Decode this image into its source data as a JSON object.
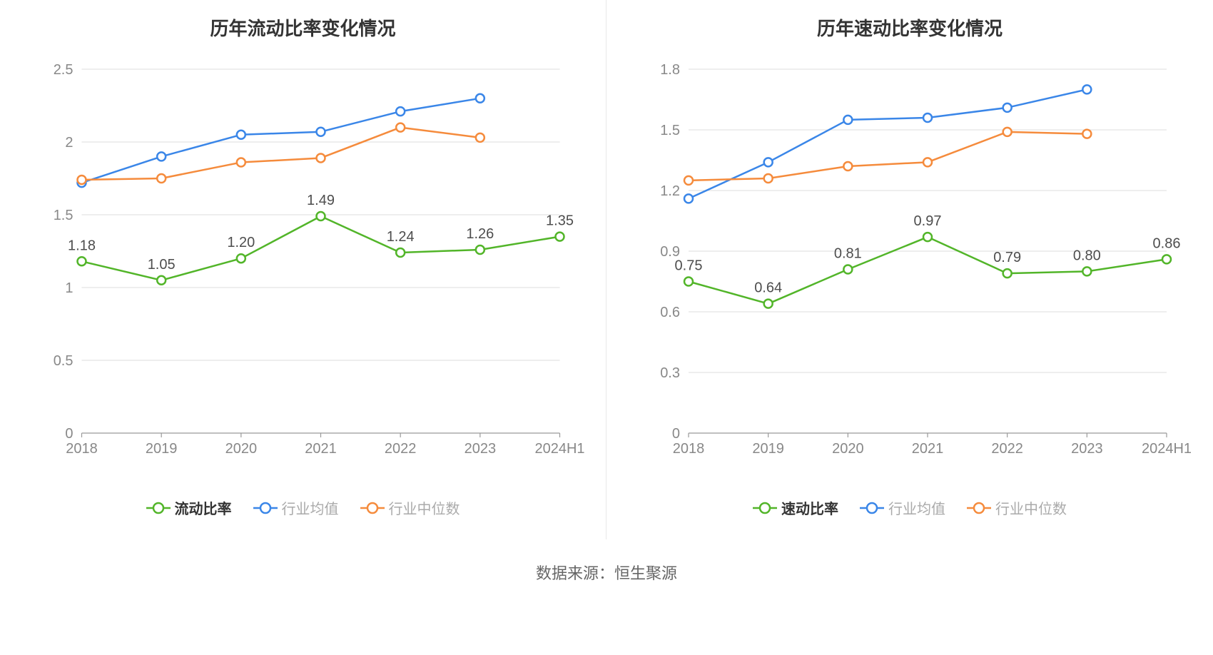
{
  "data_source_label": "数据来源：恒生聚源",
  "common": {
    "categories": [
      "2018",
      "2019",
      "2020",
      "2021",
      "2022",
      "2023",
      "2024H1"
    ],
    "series_colors": {
      "main": "#52b529",
      "industry_avg": "#3a86e8",
      "industry_median": "#f58b3c"
    },
    "axis_color": "#999999",
    "tick_label_color": "#888888",
    "grid_color": "#dddddd",
    "data_label_color": "#4d4d4d",
    "tick_fontsize": 20,
    "title_fontsize": 26,
    "data_label_fontsize": 20,
    "legend_fontsize": 20,
    "marker_radius": 6,
    "marker_fill": "#ffffff",
    "line_width": 2.5,
    "legend_active_color": "#333333",
    "legend_inactive_color": "#aaaaaa",
    "background_color": "#ffffff"
  },
  "chart_left": {
    "type": "line",
    "title": "历年流动比率变化情况",
    "ylim": [
      0,
      2.5
    ],
    "yticks": [
      0,
      0.5,
      1,
      1.5,
      2,
      2.5
    ],
    "ytick_labels": [
      "0",
      "0.5",
      "1",
      "1.5",
      "2",
      "2.5"
    ],
    "series": [
      {
        "key": "main",
        "name": "流动比率",
        "values": [
          1.18,
          1.05,
          1.2,
          1.49,
          1.24,
          1.26,
          1.35
        ],
        "show_labels": true,
        "labels": [
          "1.18",
          "1.05",
          "1.20",
          "1.49",
          "1.24",
          "1.26",
          "1.35"
        ]
      },
      {
        "key": "industry_avg",
        "name": "行业均值",
        "values": [
          1.72,
          1.9,
          2.05,
          2.07,
          2.21,
          2.3,
          null
        ],
        "show_labels": false
      },
      {
        "key": "industry_median",
        "name": "行业中位数",
        "values": [
          1.74,
          1.75,
          1.86,
          1.89,
          2.1,
          2.03,
          null
        ],
        "show_labels": false
      }
    ],
    "legend": [
      {
        "key": "main",
        "label": "流动比率",
        "active": true
      },
      {
        "key": "industry_avg",
        "label": "行业均值",
        "active": false
      },
      {
        "key": "industry_median",
        "label": "行业中位数",
        "active": false
      }
    ]
  },
  "chart_right": {
    "type": "line",
    "title": "历年速动比率变化情况",
    "ylim": [
      0,
      1.8
    ],
    "yticks": [
      0,
      0.3,
      0.6,
      0.9,
      1.2,
      1.5,
      1.8
    ],
    "ytick_labels": [
      "0",
      "0.3",
      "0.6",
      "0.9",
      "1.2",
      "1.5",
      "1.8"
    ],
    "series": [
      {
        "key": "main",
        "name": "速动比率",
        "values": [
          0.75,
          0.64,
          0.81,
          0.97,
          0.79,
          0.8,
          0.86
        ],
        "show_labels": true,
        "labels": [
          "0.75",
          "0.64",
          "0.81",
          "0.97",
          "0.79",
          "0.80",
          "0.86"
        ]
      },
      {
        "key": "industry_avg",
        "name": "行业均值",
        "values": [
          1.16,
          1.34,
          1.55,
          1.56,
          1.61,
          1.7,
          null
        ],
        "show_labels": false
      },
      {
        "key": "industry_median",
        "name": "行业中位数",
        "values": [
          1.25,
          1.26,
          1.32,
          1.34,
          1.49,
          1.48,
          null
        ],
        "show_labels": false
      }
    ],
    "legend": [
      {
        "key": "main",
        "label": "速动比率",
        "active": true
      },
      {
        "key": "industry_avg",
        "label": "行业均值",
        "active": false
      },
      {
        "key": "industry_median",
        "label": "行业中位数",
        "active": false
      }
    ]
  }
}
